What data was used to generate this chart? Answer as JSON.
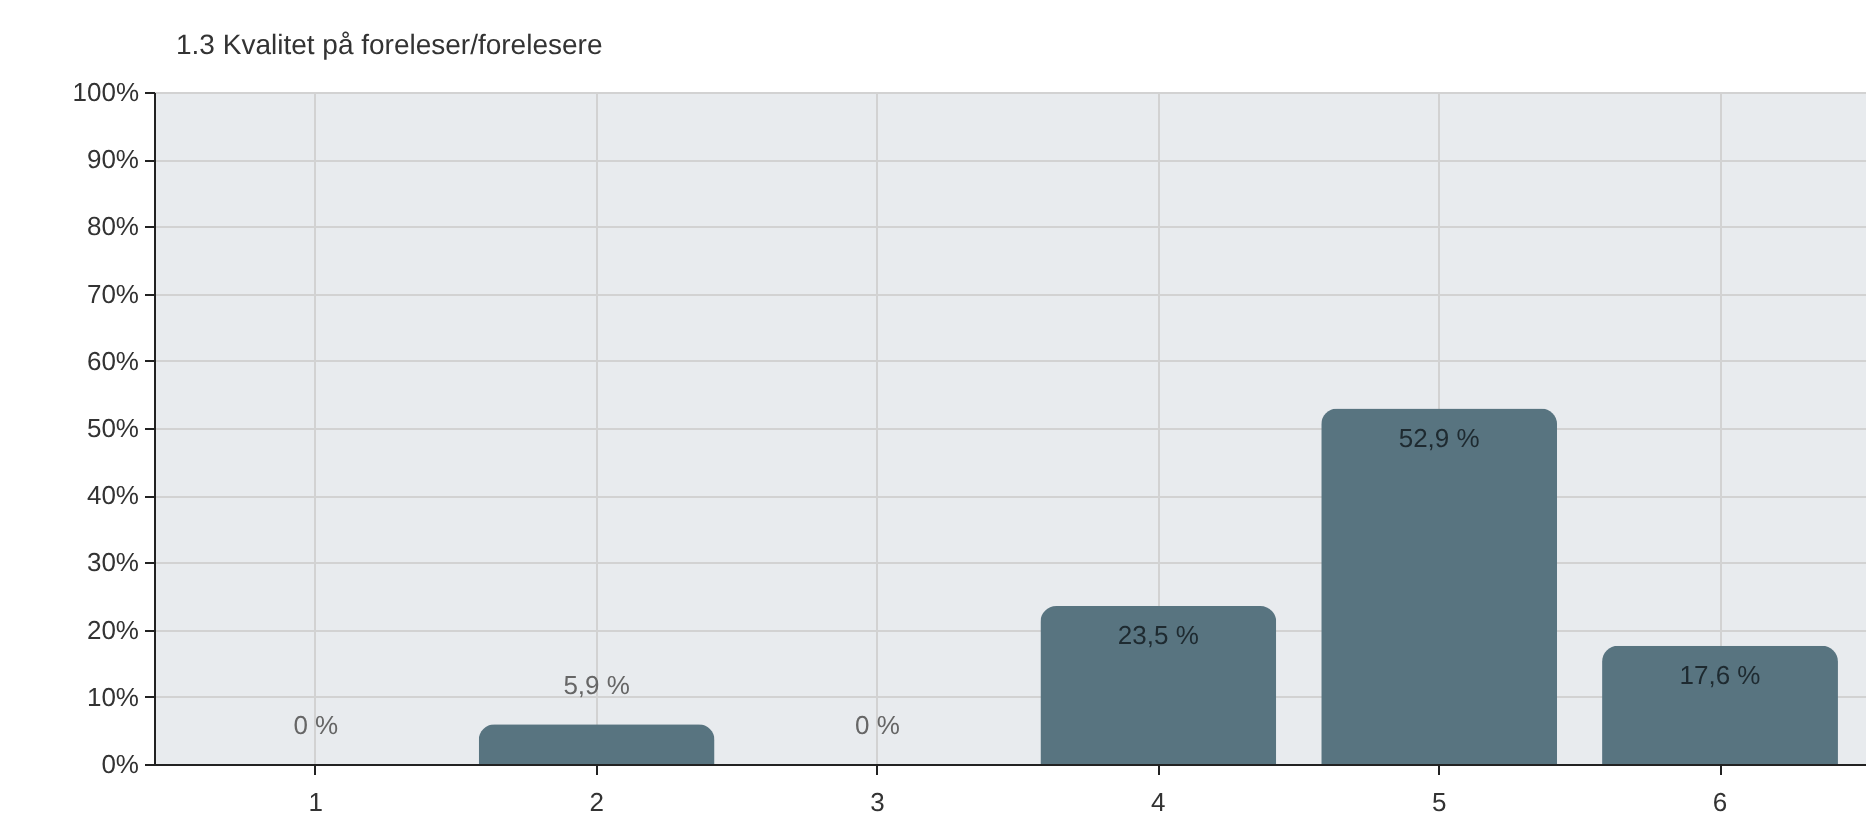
{
  "chart_data": {
    "type": "bar",
    "title": "1.3 Kvalitet på foreleser/forelesere",
    "categories": [
      "1",
      "2",
      "3",
      "4",
      "5",
      "6"
    ],
    "values": [
      0,
      5.9,
      0,
      23.5,
      52.9,
      17.6
    ],
    "color": "#587480",
    "value_labels": [
      "0 %",
      "5,9 %",
      "0 %",
      "23,5 %",
      "52,9 %",
      "17,6 %"
    ],
    "ylim": [
      0,
      100
    ],
    "yticks": [
      {
        "value": 0,
        "label": "0%"
      },
      {
        "value": 10,
        "label": "10%"
      },
      {
        "value": 20,
        "label": "20%"
      },
      {
        "value": 30,
        "label": "30%"
      },
      {
        "value": 40,
        "label": "40%"
      },
      {
        "value": 50,
        "label": "50%"
      },
      {
        "value": 60,
        "label": "60%"
      },
      {
        "value": 70,
        "label": "70%"
      },
      {
        "value": 80,
        "label": "80%"
      },
      {
        "value": 90,
        "label": "90%"
      },
      {
        "value": 100,
        "label": "100%"
      }
    ],
    "grid": true
  }
}
